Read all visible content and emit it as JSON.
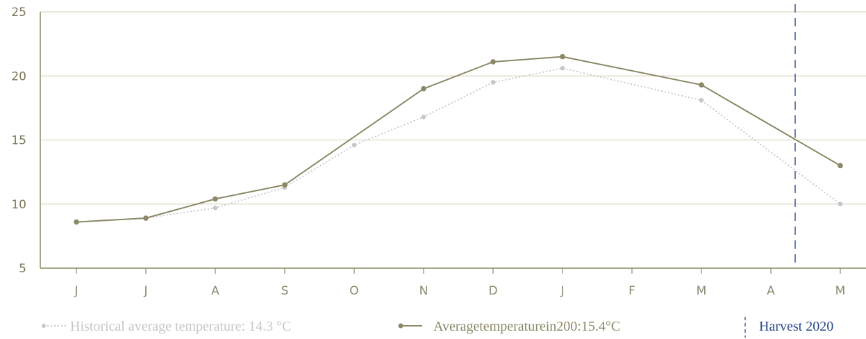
{
  "colors": {
    "axis": "#8c8a62",
    "grid": "#cfcdb6",
    "tick_text": "#7a785a",
    "historical": "#c6c6cc",
    "average_200": "#8a8866",
    "harvest_marker": "#2a4a8c"
  },
  "legend": {
    "historical_label": "Historical average temperature: 14.3 °C",
    "average_label": "Averagetemperaturein200:15.4°C",
    "harvest_label": "Harvest 2020"
  },
  "chart_data": {
    "type": "line",
    "categories": [
      "J",
      "J",
      "A",
      "S",
      "O",
      "N",
      "D",
      "J",
      "F",
      "M",
      "A",
      "M"
    ],
    "ylim": [
      5,
      25
    ],
    "yticks": [
      5,
      10,
      15,
      20,
      25
    ],
    "grid": true,
    "legend_position": "bottom",
    "series": [
      {
        "name": "Historical average temperature: 14.3 °C",
        "style": "dotted",
        "color": "#c6c6cc",
        "points": [
          [
            0,
            8.6
          ],
          [
            1,
            8.9
          ],
          [
            2,
            9.7
          ],
          [
            3,
            11.3
          ],
          [
            4,
            14.6
          ],
          [
            5,
            16.8
          ],
          [
            6,
            19.5
          ],
          [
            7,
            20.6
          ],
          [
            9,
            18.1
          ],
          [
            11,
            10.0
          ]
        ]
      },
      {
        "name": "Averagetemperaturein200:15.4°C",
        "style": "solid",
        "color": "#8a8866",
        "points": [
          [
            0,
            8.6
          ],
          [
            1,
            8.9
          ],
          [
            2,
            10.4
          ],
          [
            3,
            11.5
          ],
          [
            5,
            19.0
          ],
          [
            6,
            21.1
          ],
          [
            7,
            21.5
          ],
          [
            9,
            19.3
          ],
          [
            11,
            13.0
          ]
        ]
      }
    ],
    "harvest_marker_x": 10.35
  }
}
